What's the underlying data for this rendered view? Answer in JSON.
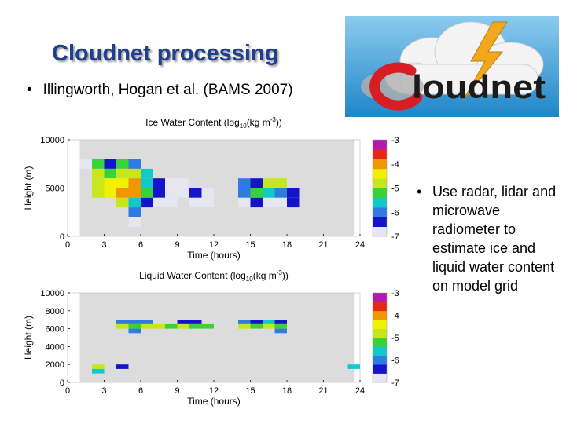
{
  "slide": {
    "title": "Cloudnet processing",
    "citation": "Illingworth, Hogan et al. (BAMS 2007)",
    "side_bullet": "Use radar, lidar and microwave radiometer to estimate ice and liquid water content on model grid",
    "bullet_char": "•"
  },
  "logo": {
    "text": "loudnet",
    "colors": {
      "sky": "#4fa6d8",
      "bolt": "#f2a81d",
      "swirl": "#d81e25",
      "text": "#1b1b1b"
    }
  },
  "colors": {
    "plot_bg": "#dcdcdc",
    "axis": "#000000"
  },
  "colormap": [
    "#e6e6f2",
    "#1414c8",
    "#2f7be0",
    "#12c8c8",
    "#3ad23a",
    "#c8e61e",
    "#f0f000",
    "#f09600",
    "#e62814",
    "#b41aaa"
  ],
  "chart_data": [
    {
      "type": "heatmap",
      "title": "Ice Water Content (log10(kg m-3))",
      "title_parts": {
        "pre": "Ice Water Content (log",
        "sub": "10",
        "mid": "(kg m",
        "sup": "-3",
        "post": "))"
      },
      "xlabel": "Time (hours)",
      "ylabel": "Height (m)",
      "xlim": [
        0,
        24
      ],
      "ylim": [
        0,
        10000
      ],
      "xticks": [
        0,
        3,
        6,
        9,
        12,
        15,
        18,
        21,
        24
      ],
      "yticks": [
        0,
        5000,
        10000
      ],
      "cell_width_hours": 1,
      "cell_height_m": 1000,
      "colorbar": {
        "range": [
          -7,
          -3
        ],
        "ticks": [
          -3,
          -4,
          -5,
          -6,
          -7
        ]
      },
      "cells": [
        {
          "x": 1,
          "y": 7500,
          "v": -6.8
        },
        {
          "x": 2,
          "y": 7500,
          "v": -5.1
        },
        {
          "x": 3,
          "y": 7500,
          "v": -6.6
        },
        {
          "x": 4,
          "y": 7500,
          "v": -5.1
        },
        {
          "x": 5,
          "y": 7500,
          "v": -5.9
        },
        {
          "x": 2,
          "y": 6500,
          "v": -4.9
        },
        {
          "x": 3,
          "y": 6500,
          "v": -5.2
        },
        {
          "x": 4,
          "y": 6500,
          "v": -4.8
        },
        {
          "x": 5,
          "y": 6500,
          "v": -5.0
        },
        {
          "x": 6,
          "y": 6500,
          "v": -5.5
        },
        {
          "x": 2,
          "y": 5500,
          "v": -4.7
        },
        {
          "x": 3,
          "y": 5500,
          "v": -4.5
        },
        {
          "x": 4,
          "y": 5500,
          "v": -4.6
        },
        {
          "x": 5,
          "y": 5500,
          "v": -4.2
        },
        {
          "x": 6,
          "y": 5500,
          "v": -5.4
        },
        {
          "x": 7,
          "y": 5500,
          "v": -6.2
        },
        {
          "x": 8,
          "y": 5500,
          "v": -6.8
        },
        {
          "x": 9,
          "y": 5500,
          "v": -6.7
        },
        {
          "x": 14,
          "y": 5500,
          "v": -6.1
        },
        {
          "x": 15,
          "y": 5500,
          "v": -6.4
        },
        {
          "x": 16,
          "y": 5500,
          "v": -5.0
        },
        {
          "x": 17,
          "y": 5500,
          "v": -4.9
        },
        {
          "x": 2,
          "y": 4500,
          "v": -4.8
        },
        {
          "x": 3,
          "y": 4500,
          "v": -4.6
        },
        {
          "x": 4,
          "y": 4500,
          "v": -4.1
        },
        {
          "x": 5,
          "y": 4500,
          "v": -4.0
        },
        {
          "x": 6,
          "y": 4500,
          "v": -5.2
        },
        {
          "x": 7,
          "y": 4500,
          "v": -6.6
        },
        {
          "x": 8,
          "y": 4500,
          "v": -6.8
        },
        {
          "x": 9,
          "y": 4500,
          "v": -6.9
        },
        {
          "x": 10,
          "y": 4500,
          "v": -6.4
        },
        {
          "x": 11,
          "y": 4500,
          "v": -6.7
        },
        {
          "x": 14,
          "y": 4500,
          "v": -6.0
        },
        {
          "x": 15,
          "y": 4500,
          "v": -5.3
        },
        {
          "x": 16,
          "y": 4500,
          "v": -5.5
        },
        {
          "x": 17,
          "y": 4500,
          "v": -6.1
        },
        {
          "x": 18,
          "y": 4500,
          "v": -6.2
        },
        {
          "x": 4,
          "y": 3500,
          "v": -5.0
        },
        {
          "x": 5,
          "y": 3500,
          "v": -5.6
        },
        {
          "x": 6,
          "y": 3500,
          "v": -6.6
        },
        {
          "x": 7,
          "y": 3500,
          "v": -6.9
        },
        {
          "x": 8,
          "y": 3500,
          "v": -6.8
        },
        {
          "x": 10,
          "y": 3500,
          "v": -6.8
        },
        {
          "x": 11,
          "y": 3500,
          "v": -6.7
        },
        {
          "x": 14,
          "y": 3500,
          "v": -6.7
        },
        {
          "x": 15,
          "y": 3500,
          "v": -6.2
        },
        {
          "x": 16,
          "y": 3500,
          "v": -6.8
        },
        {
          "x": 17,
          "y": 3500,
          "v": -6.9
        },
        {
          "x": 18,
          "y": 3500,
          "v": -6.2
        },
        {
          "x": 5,
          "y": 2500,
          "v": -6.1
        },
        {
          "x": 5,
          "y": 1500,
          "v": -6.8
        }
      ]
    },
    {
      "type": "heatmap",
      "title": "Liquid Water Content (log10(kg m-3))",
      "title_parts": {
        "pre": "Liquid Water Content (log",
        "sub": "10",
        "mid": "(kg m",
        "sup": "-3",
        "post": "))"
      },
      "xlabel": "Time (hours)",
      "ylabel": "Height (m)",
      "xlim": [
        0,
        24
      ],
      "ylim": [
        0,
        10000
      ],
      "xticks": [
        0,
        3,
        6,
        9,
        12,
        15,
        18,
        21,
        24
      ],
      "yticks": [
        0,
        2000,
        4000,
        6000,
        8000,
        10000
      ],
      "cell_width_hours": 1,
      "cell_height_m": 500,
      "colorbar": {
        "range": [
          -7,
          -3
        ],
        "ticks": [
          -3,
          -4,
          -5,
          -6,
          -7
        ]
      },
      "cells": [
        {
          "x": 4,
          "y": 6750,
          "v": -5.9
        },
        {
          "x": 5,
          "y": 6750,
          "v": -5.9
        },
        {
          "x": 6,
          "y": 6750,
          "v": -6.1
        },
        {
          "x": 9,
          "y": 6750,
          "v": -6.6
        },
        {
          "x": 10,
          "y": 6750,
          "v": -6.4
        },
        {
          "x": 14,
          "y": 6750,
          "v": -6.0
        },
        {
          "x": 15,
          "y": 6750,
          "v": -6.3
        },
        {
          "x": 16,
          "y": 6750,
          "v": -5.8
        },
        {
          "x": 17,
          "y": 6750,
          "v": -6.5
        },
        {
          "x": 4,
          "y": 6250,
          "v": -5.0
        },
        {
          "x": 5,
          "y": 6250,
          "v": -5.1
        },
        {
          "x": 6,
          "y": 6250,
          "v": -4.8
        },
        {
          "x": 7,
          "y": 6250,
          "v": -5.0
        },
        {
          "x": 8,
          "y": 6250,
          "v": -5.3
        },
        {
          "x": 9,
          "y": 6250,
          "v": -5.0
        },
        {
          "x": 10,
          "y": 6250,
          "v": -5.2
        },
        {
          "x": 11,
          "y": 6250,
          "v": -5.1
        },
        {
          "x": 14,
          "y": 6250,
          "v": -5.0
        },
        {
          "x": 15,
          "y": 6250,
          "v": -5.2
        },
        {
          "x": 16,
          "y": 6250,
          "v": -5.0
        },
        {
          "x": 17,
          "y": 6250,
          "v": -5.1
        },
        {
          "x": 5,
          "y": 5750,
          "v": -5.9
        },
        {
          "x": 17,
          "y": 5750,
          "v": -6.1
        },
        {
          "x": 2,
          "y": 1750,
          "v": -4.9
        },
        {
          "x": 2,
          "y": 1250,
          "v": -5.8
        },
        {
          "x": 4,
          "y": 1750,
          "v": -6.6
        },
        {
          "x": 23,
          "y": 1750,
          "v": -5.6
        }
      ]
    }
  ]
}
